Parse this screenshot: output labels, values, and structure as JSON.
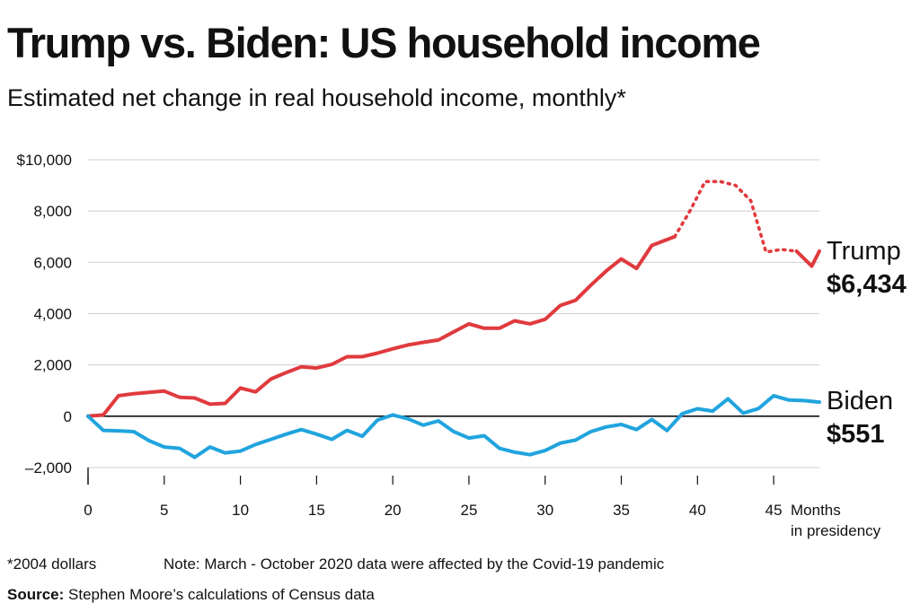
{
  "title": "Trump vs. Biden: US household income",
  "subtitle": "Estimated net change in real household income, monthly*",
  "footnote": "*2004 dollars",
  "note": "Note: March - October 2020 data were affected by the Covid-19 pandemic",
  "source_label": "Source:",
  "source_text": " Stephen Moore’s calculations of Census data",
  "colors": {
    "trump": "#e03a3e",
    "biden": "#20a4de",
    "grid": "#cfcfcf",
    "axis": "#111111",
    "text": "#111111"
  },
  "chart_data": {
    "type": "line",
    "title": "Trump vs. Biden: US household income",
    "subtitle": "Estimated net change in real household income, monthly*",
    "xlabel": "Months in presidency",
    "ylabel": "",
    "xlim": [
      0,
      48
    ],
    "ylim": [
      -2000,
      10000
    ],
    "grid": true,
    "x_ticks": [
      0,
      5,
      10,
      15,
      20,
      25,
      30,
      35,
      40,
      45
    ],
    "x_tick_labels": [
      "0",
      "5",
      "10",
      "15",
      "20",
      "25",
      "30",
      "35",
      "40",
      "45"
    ],
    "x_axis_title_lines": [
      "Months",
      "in presidency"
    ],
    "y_ticks": [
      -2000,
      0,
      2000,
      4000,
      6000,
      8000,
      10000
    ],
    "y_tick_labels": [
      "–2,000",
      "0",
      "2,000",
      "4,000",
      "6,000",
      "8,000",
      "$10,000"
    ],
    "series": [
      {
        "name": "Trump",
        "end_label": "$6,434",
        "x": [
          0,
          1,
          2,
          3,
          4,
          5,
          6,
          7,
          8,
          9,
          10,
          11,
          12,
          13,
          14,
          15,
          16,
          17,
          18,
          19,
          20,
          21,
          22,
          23,
          24,
          25,
          26,
          27,
          28,
          29,
          30,
          31,
          32,
          33,
          34,
          35,
          36,
          37,
          38.5,
          39.5,
          40.5,
          41.5,
          42.5,
          43.5,
          44.5,
          45.5,
          46.5,
          47.5,
          48
        ],
        "values": [
          0,
          50,
          800,
          880,
          930,
          980,
          740,
          710,
          470,
          500,
          1100,
          950,
          1450,
          1700,
          1930,
          1880,
          2020,
          2320,
          2320,
          2460,
          2630,
          2780,
          2880,
          2970,
          3290,
          3600,
          3430,
          3430,
          3720,
          3600,
          3780,
          4320,
          4520,
          5110,
          5660,
          6130,
          5760,
          6660,
          7000,
          8000,
          9150,
          9150,
          9000,
          8400,
          6400,
          6500,
          6434,
          5850,
          6434
        ],
        "segments": [
          {
            "style": "solid",
            "from_index": 0,
            "to_index": 38
          },
          {
            "style": "dotted",
            "from_index": 38,
            "to_index": 46
          },
          {
            "style": "solid",
            "from_index": 46,
            "to_index": 48
          }
        ]
      },
      {
        "name": "Biden",
        "end_label": "$551",
        "x": [
          0,
          1,
          2,
          3,
          4,
          5,
          6,
          7,
          8,
          9,
          10,
          11,
          12,
          13,
          14,
          15,
          16,
          17,
          18,
          19,
          20,
          21,
          22,
          23,
          24,
          25,
          26,
          27,
          28,
          29,
          30,
          31,
          32,
          33,
          34,
          35,
          36,
          37,
          38,
          39,
          40,
          41,
          42,
          43,
          44,
          45,
          46,
          47,
          48
        ],
        "values": [
          0,
          -550,
          -570,
          -600,
          -950,
          -1200,
          -1250,
          -1600,
          -1200,
          -1430,
          -1360,
          -1100,
          -900,
          -700,
          -520,
          -700,
          -900,
          -550,
          -780,
          -150,
          50,
          -100,
          -350,
          -180,
          -600,
          -850,
          -760,
          -1250,
          -1400,
          -1500,
          -1340,
          -1050,
          -930,
          -600,
          -420,
          -320,
          -520,
          -130,
          -560,
          100,
          290,
          200,
          680,
          120,
          300,
          800,
          630,
          610,
          551
        ],
        "segments": [
          {
            "style": "solid",
            "from_index": 0,
            "to_index": 48
          }
        ]
      }
    ]
  }
}
